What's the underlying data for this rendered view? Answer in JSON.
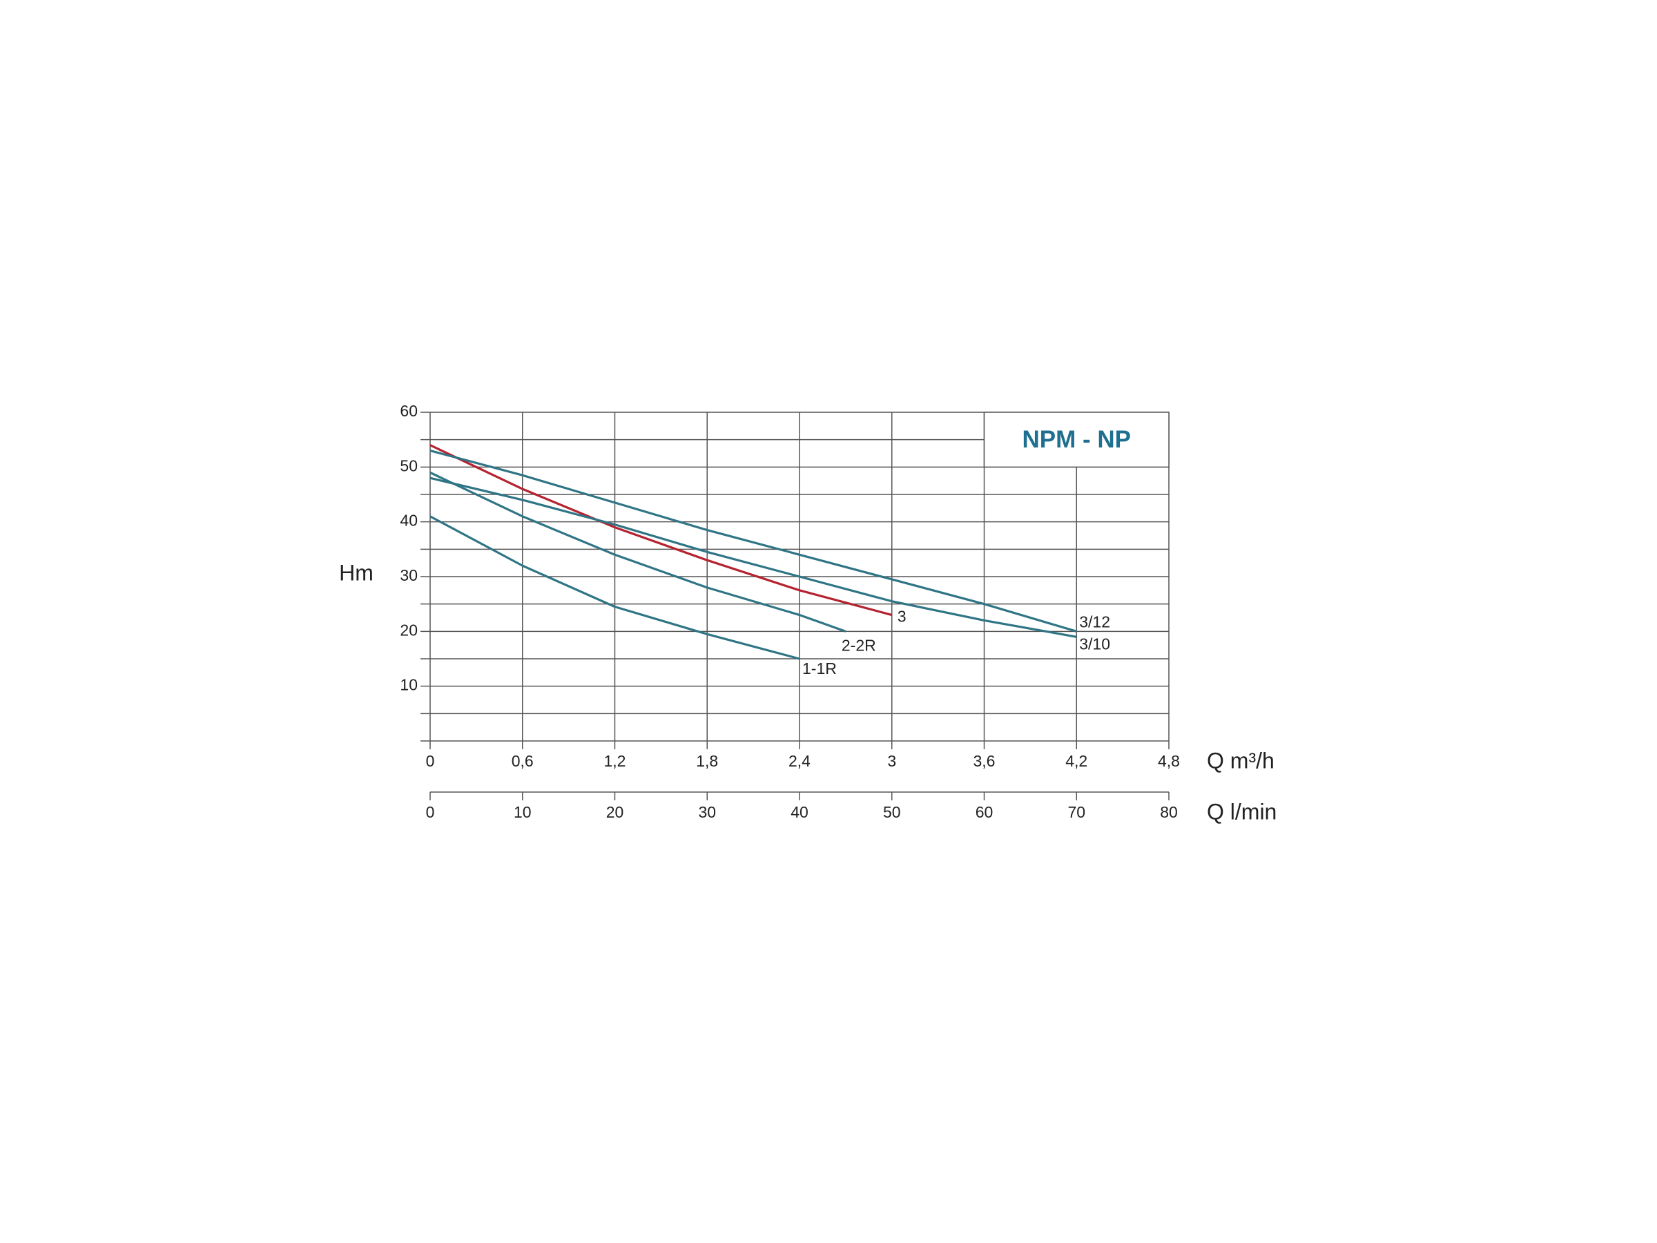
{
  "chart_data": {
    "type": "line",
    "title": "NPM - NP",
    "ylabel": "Hm",
    "xlabel": "Q m³/h",
    "x2label": "Q l/min",
    "xlim": [
      0,
      4.8
    ],
    "xticks": [
      0,
      {
        "value": 0.6,
        "label": "0,6"
      },
      {
        "value": 1.2,
        "label": "1,2"
      },
      {
        "value": 1.8,
        "label": "1,8"
      },
      {
        "value": 2.4,
        "label": "2,4"
      },
      3,
      {
        "value": 3.6,
        "label": "3,6"
      },
      {
        "value": 4.2,
        "label": "4,2"
      },
      {
        "value": 4.8,
        "label": "4,8"
      }
    ],
    "x2lim": [
      0,
      80
    ],
    "x2ticks": [
      0,
      10,
      20,
      30,
      40,
      50,
      60,
      70,
      80
    ],
    "ylim": [
      0,
      60
    ],
    "yticks": [
      10,
      20,
      30,
      40,
      50,
      60
    ],
    "yminorticks": [
      0,
      5,
      15,
      25,
      35,
      45,
      55
    ],
    "grid": true,
    "series": [
      {
        "name": "1-1R",
        "color": "#2f7585",
        "x": [
          0,
          0.6,
          1.2,
          1.8,
          2.4
        ],
        "values": [
          41,
          32,
          24.5,
          19.5,
          15
        ]
      },
      {
        "name": "2-2R",
        "color": "#2f7585",
        "x": [
          0,
          0.6,
          1.2,
          1.8,
          2.4,
          2.7
        ],
        "values": [
          49,
          41,
          34,
          28,
          23,
          20
        ]
      },
      {
        "name": "3",
        "color": "#b52230",
        "x": [
          0,
          0.6,
          1.2,
          1.8,
          2.4,
          3.0
        ],
        "values": [
          54,
          46,
          39,
          33,
          27.5,
          23
        ]
      },
      {
        "name": "3/12",
        "color": "#2f7585",
        "x": [
          0,
          0.6,
          1.2,
          1.8,
          2.4,
          3.0,
          3.6,
          4.2
        ],
        "values": [
          53,
          48.5,
          43.5,
          38.5,
          34,
          29.5,
          25,
          20
        ]
      },
      {
        "name": "3/10",
        "color": "#2f7585",
        "x": [
          0,
          0.6,
          1.2,
          1.8,
          2.4,
          3.0,
          3.6,
          4.2
        ],
        "values": [
          48,
          44,
          39.5,
          34.5,
          30,
          25.5,
          22,
          19
        ]
      }
    ]
  }
}
